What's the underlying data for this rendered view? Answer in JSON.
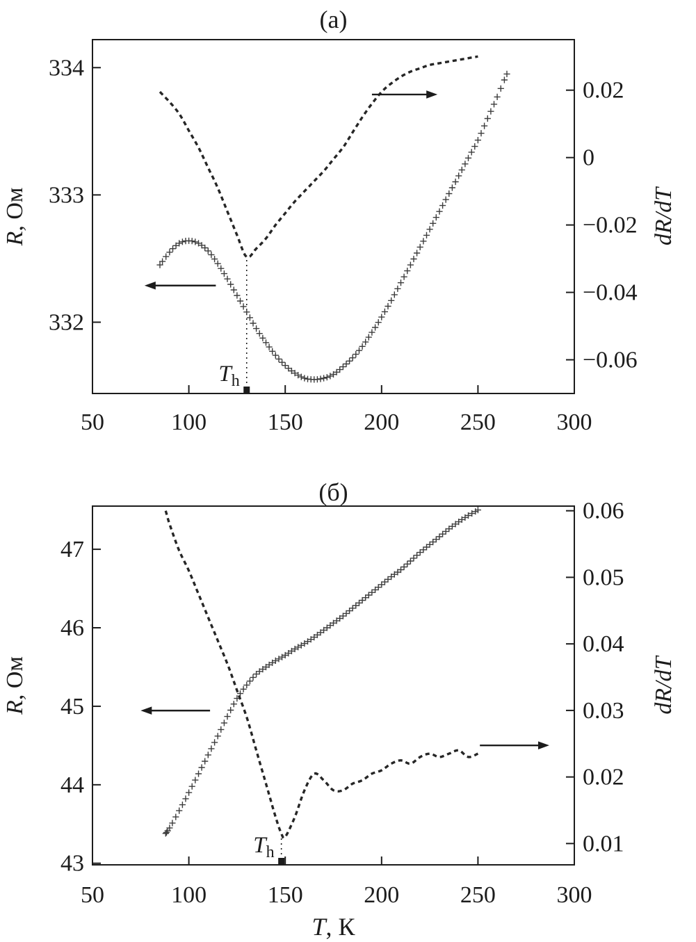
{
  "figure": {
    "background": "#ffffff",
    "ink": "#1c1c1c",
    "curve_color": "#3c3c3c",
    "dash_color": "#262626"
  },
  "chart_data": [
    {
      "type": "line",
      "panel": "(а)",
      "xlim": [
        50,
        300
      ],
      "x_ticks": {
        "values": [
          50,
          100,
          150,
          200,
          250,
          300
        ],
        "labels": [
          "50",
          "100",
          "150",
          "200",
          "250",
          "300"
        ]
      },
      "xlabel_parts": [],
      "left_axis": {
        "label_parts": [
          [
            "R",
            true
          ],
          [
            ", Ом",
            false
          ]
        ],
        "lim": [
          331.44,
          334.22
        ],
        "ticks": {
          "values": [
            332,
            333,
            334
          ],
          "labels": [
            "332",
            "333",
            "334"
          ]
        }
      },
      "right_axis": {
        "label_parts": [
          [
            "dR/dT",
            true
          ]
        ],
        "lim": [
          -0.07,
          0.035
        ],
        "ticks": {
          "values": [
            0.02,
            0,
            -0.02,
            -0.04,
            -0.06
          ],
          "labels": [
            "0.02",
            "0",
            "−0.02",
            "−0.04",
            "−0.06"
          ]
        }
      },
      "series": [
        {
          "name": "R(T)",
          "axis": "left",
          "style": "plus-markers",
          "x": [
            85,
            90,
            95,
            100,
            105,
            110,
            115,
            120,
            125,
            130,
            135,
            140,
            145,
            150,
            155,
            160,
            165,
            170,
            175,
            180,
            185,
            190,
            195,
            200,
            205,
            210,
            215,
            220,
            225,
            230,
            235,
            240,
            245,
            250,
            255,
            260,
            265
          ],
          "y": [
            332.45,
            332.55,
            332.62,
            332.64,
            332.62,
            332.56,
            332.46,
            332.34,
            332.21,
            332.08,
            331.95,
            331.84,
            331.74,
            331.66,
            331.6,
            331.56,
            331.55,
            331.56,
            331.59,
            331.65,
            331.72,
            331.81,
            331.92,
            332.04,
            332.17,
            332.31,
            332.45,
            332.59,
            332.73,
            332.87,
            333.01,
            333.15,
            333.29,
            333.43,
            333.6,
            333.77,
            333.95
          ]
        },
        {
          "name": "dR/dT(T)",
          "axis": "right",
          "style": "dashed",
          "x": [
            85,
            90,
            95,
            100,
            105,
            110,
            115,
            120,
            125,
            130,
            135,
            140,
            145,
            150,
            155,
            160,
            165,
            170,
            175,
            180,
            185,
            190,
            195,
            200,
            205,
            210,
            215,
            220,
            225,
            230,
            235,
            240,
            245,
            250
          ],
          "y": [
            0.0195,
            0.0165,
            0.013,
            0.008,
            0.003,
            -0.003,
            -0.009,
            -0.016,
            -0.023,
            -0.0295,
            -0.027,
            -0.024,
            -0.02,
            -0.0165,
            -0.013,
            -0.01,
            -0.007,
            -0.004,
            -0.0005,
            0.003,
            0.0075,
            0.012,
            0.016,
            0.0195,
            0.022,
            0.024,
            0.0255,
            0.0265,
            0.0275,
            0.028,
            0.0285,
            0.029,
            0.0295,
            0.03
          ]
        }
      ],
      "annotation": {
        "label_main": "T",
        "label_sub": "h",
        "x": 130,
        "line_top_frac": 0.62
      },
      "arrows": [
        {
          "dir": "left",
          "x_head": 77,
          "x_tail": 114,
          "y_frac": 0.695
        },
        {
          "dir": "right",
          "x_head": 229,
          "x_tail": 195,
          "y_frac": 0.155
        }
      ]
    },
    {
      "type": "line",
      "panel": "(б)",
      "xlim": [
        50,
        300
      ],
      "x_ticks": {
        "values": [
          50,
          100,
          150,
          200,
          250,
          300
        ],
        "labels": [
          "50",
          "100",
          "150",
          "200",
          "250",
          "300"
        ]
      },
      "xlabel_parts": [
        [
          "T",
          true
        ],
        [
          ", К",
          false
        ]
      ],
      "left_axis": {
        "label_parts": [
          [
            "R",
            true
          ],
          [
            ", Ом",
            false
          ]
        ],
        "lim": [
          42.98,
          47.55
        ],
        "ticks": {
          "values": [
            43,
            44,
            45,
            46,
            47
          ],
          "labels": [
            "43",
            "44",
            "45",
            "46",
            "47"
          ]
        }
      },
      "right_axis": {
        "label_parts": [
          [
            "dR/dT",
            true
          ]
        ],
        "lim": [
          0.0068,
          0.0607
        ],
        "ticks": {
          "values": [
            0.01,
            0.02,
            0.03,
            0.04,
            0.05,
            0.06
          ],
          "labels": [
            "0.01",
            "0.02",
            "0.03",
            "0.04",
            "0.05",
            "0.06"
          ]
        }
      },
      "series": [
        {
          "name": "R(T)",
          "axis": "left",
          "style": "plus-markers",
          "x": [
            88,
            90,
            95,
            100,
            105,
            110,
            115,
            120,
            125,
            130,
            135,
            140,
            145,
            150,
            155,
            160,
            165,
            170,
            175,
            180,
            185,
            190,
            195,
            200,
            205,
            210,
            215,
            220,
            225,
            230,
            235,
            240,
            245,
            250
          ],
          "y": [
            43.38,
            43.45,
            43.67,
            43.9,
            44.14,
            44.38,
            44.62,
            44.87,
            45.1,
            45.27,
            45.41,
            45.5,
            45.58,
            45.65,
            45.73,
            45.8,
            45.88,
            45.97,
            46.06,
            46.15,
            46.25,
            46.35,
            46.45,
            46.55,
            46.65,
            46.74,
            46.85,
            46.96,
            47.06,
            47.16,
            47.26,
            47.35,
            47.43,
            47.5
          ]
        },
        {
          "name": "dR/dT(T)",
          "axis": "right",
          "style": "dashed",
          "x": [
            88,
            90,
            95,
            100,
            105,
            110,
            115,
            120,
            125,
            130,
            135,
            140,
            145,
            148,
            150,
            155,
            160,
            165,
            170,
            175,
            180,
            185,
            190,
            195,
            200,
            205,
            210,
            215,
            220,
            225,
            230,
            235,
            240,
            245,
            250
          ],
          "y": [
            0.06,
            0.058,
            0.054,
            0.051,
            0.0475,
            0.044,
            0.0405,
            0.037,
            0.033,
            0.029,
            0.024,
            0.019,
            0.014,
            0.0115,
            0.011,
            0.014,
            0.018,
            0.0205,
            0.0195,
            0.018,
            0.018,
            0.019,
            0.0195,
            0.0205,
            0.021,
            0.022,
            0.0225,
            0.022,
            0.023,
            0.0235,
            0.023,
            0.0235,
            0.024,
            0.023,
            0.0235
          ]
        }
      ],
      "annotation": {
        "label_main": "T",
        "label_sub": "h",
        "x": 148,
        "line_top_frac": 0.915
      },
      "arrows": [
        {
          "dir": "left",
          "x_head": 75,
          "x_tail": 111,
          "y_frac": 0.57
        },
        {
          "dir": "right",
          "x_head": 287,
          "x_tail": 251,
          "y_frac": 0.667
        }
      ]
    }
  ]
}
